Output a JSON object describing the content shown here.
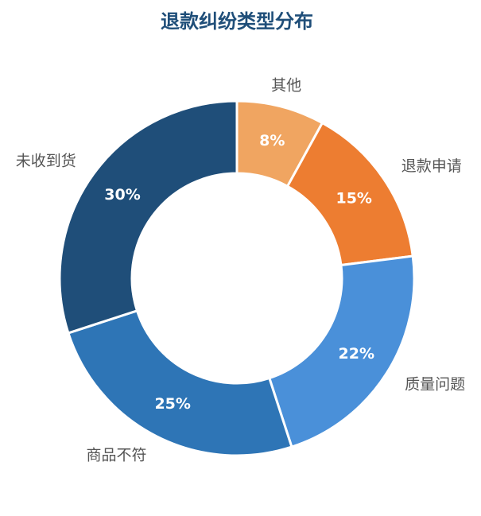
{
  "chart_data": {
    "type": "donut",
    "title": "退款纠纷类型分布",
    "categories": [
      "其他",
      "退款申请",
      "质量问题",
      "商品不符",
      "未收到货"
    ],
    "values": [
      8,
      15,
      22,
      25,
      30
    ],
    "value_labels": [
      "8%",
      "15%",
      "22%",
      "25%",
      "30%"
    ],
    "colors": [
      "#f0a561",
      "#ed7d31",
      "#4a90d9",
      "#2e75b6",
      "#1f4e79"
    ]
  }
}
